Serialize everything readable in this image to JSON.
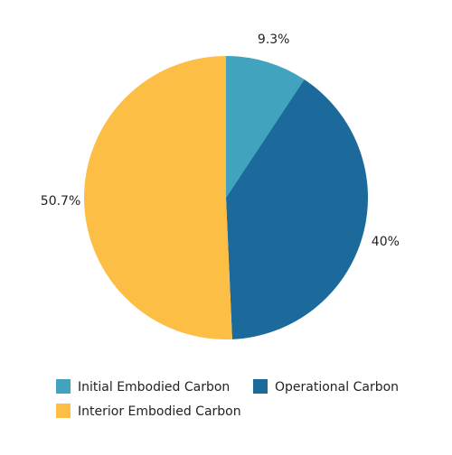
{
  "chart_data": {
    "type": "pie",
    "categories": [
      "Initial Embodied Carbon",
      "Operational Carbon",
      "Interior Embodied Carbon"
    ],
    "values": [
      9.3,
      40,
      50.7
    ],
    "value_labels": [
      "9.3%",
      "40%",
      "50.7%"
    ],
    "colors": [
      "#41a3be",
      "#1b6a9b",
      "#fdbe45"
    ],
    "legend": "bottom"
  }
}
